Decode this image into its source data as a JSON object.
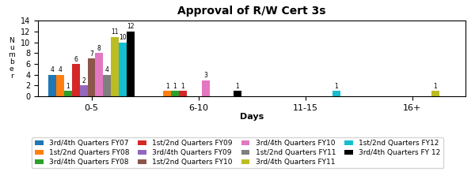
{
  "chart_data": {
    "type": "bar",
    "title": "Approval of R/W Cert 3s",
    "x_label": "Days",
    "y_label": "N\nu\nm\nb\ne\nr",
    "categories": [
      "0-5",
      "6-10",
      "11-15",
      "16+"
    ],
    "ylim": [
      0,
      14
    ],
    "yticks": [
      0,
      2,
      4,
      6,
      8,
      10,
      12,
      14
    ],
    "data_labels": true,
    "legend": "lower center",
    "grid": false,
    "series": [
      {
        "name": "3rd/4th Quarters FY07",
        "color": "#1f77b4",
        "values": [
          4,
          0,
          0,
          0
        ]
      },
      {
        "name": "1st/2nd Quarters FY08",
        "color": "#ff7f0e",
        "values": [
          4,
          1,
          0,
          0
        ]
      },
      {
        "name": "3rd/4th Quarters FY08",
        "color": "#2ca02c",
        "values": [
          1,
          1,
          0,
          0
        ]
      },
      {
        "name": "1st/2nd Quarters FY09",
        "color": "#d62728",
        "values": [
          6,
          1,
          0,
          0
        ]
      },
      {
        "name": "3rd/4th Quarters FY09",
        "color": "#9467bd",
        "values": [
          2,
          0,
          0,
          0
        ]
      },
      {
        "name": "1st/2nd Quarters FY10",
        "color": "#8c564b",
        "values": [
          7,
          0,
          0,
          0
        ]
      },
      {
        "name": "3rd/4th Quarters FY10",
        "color": "#e377c2",
        "values": [
          8,
          3,
          0,
          0
        ]
      },
      {
        "name": "1st/2nd Quarters FY11",
        "color": "#7f7f7f",
        "values": [
          4,
          0,
          0,
          0
        ]
      },
      {
        "name": "3rd/4th Quarters FY11",
        "color": "#bcbd22",
        "values": [
          11,
          0,
          0,
          1
        ]
      },
      {
        "name": "1st/2nd Quarters FY12",
        "color": "#17becf",
        "values": [
          10,
          0,
          1,
          0
        ]
      },
      {
        "name": "3rd/4th Quarters FY 12",
        "color": "#000000",
        "values": [
          12,
          1,
          0,
          0
        ]
      }
    ]
  }
}
